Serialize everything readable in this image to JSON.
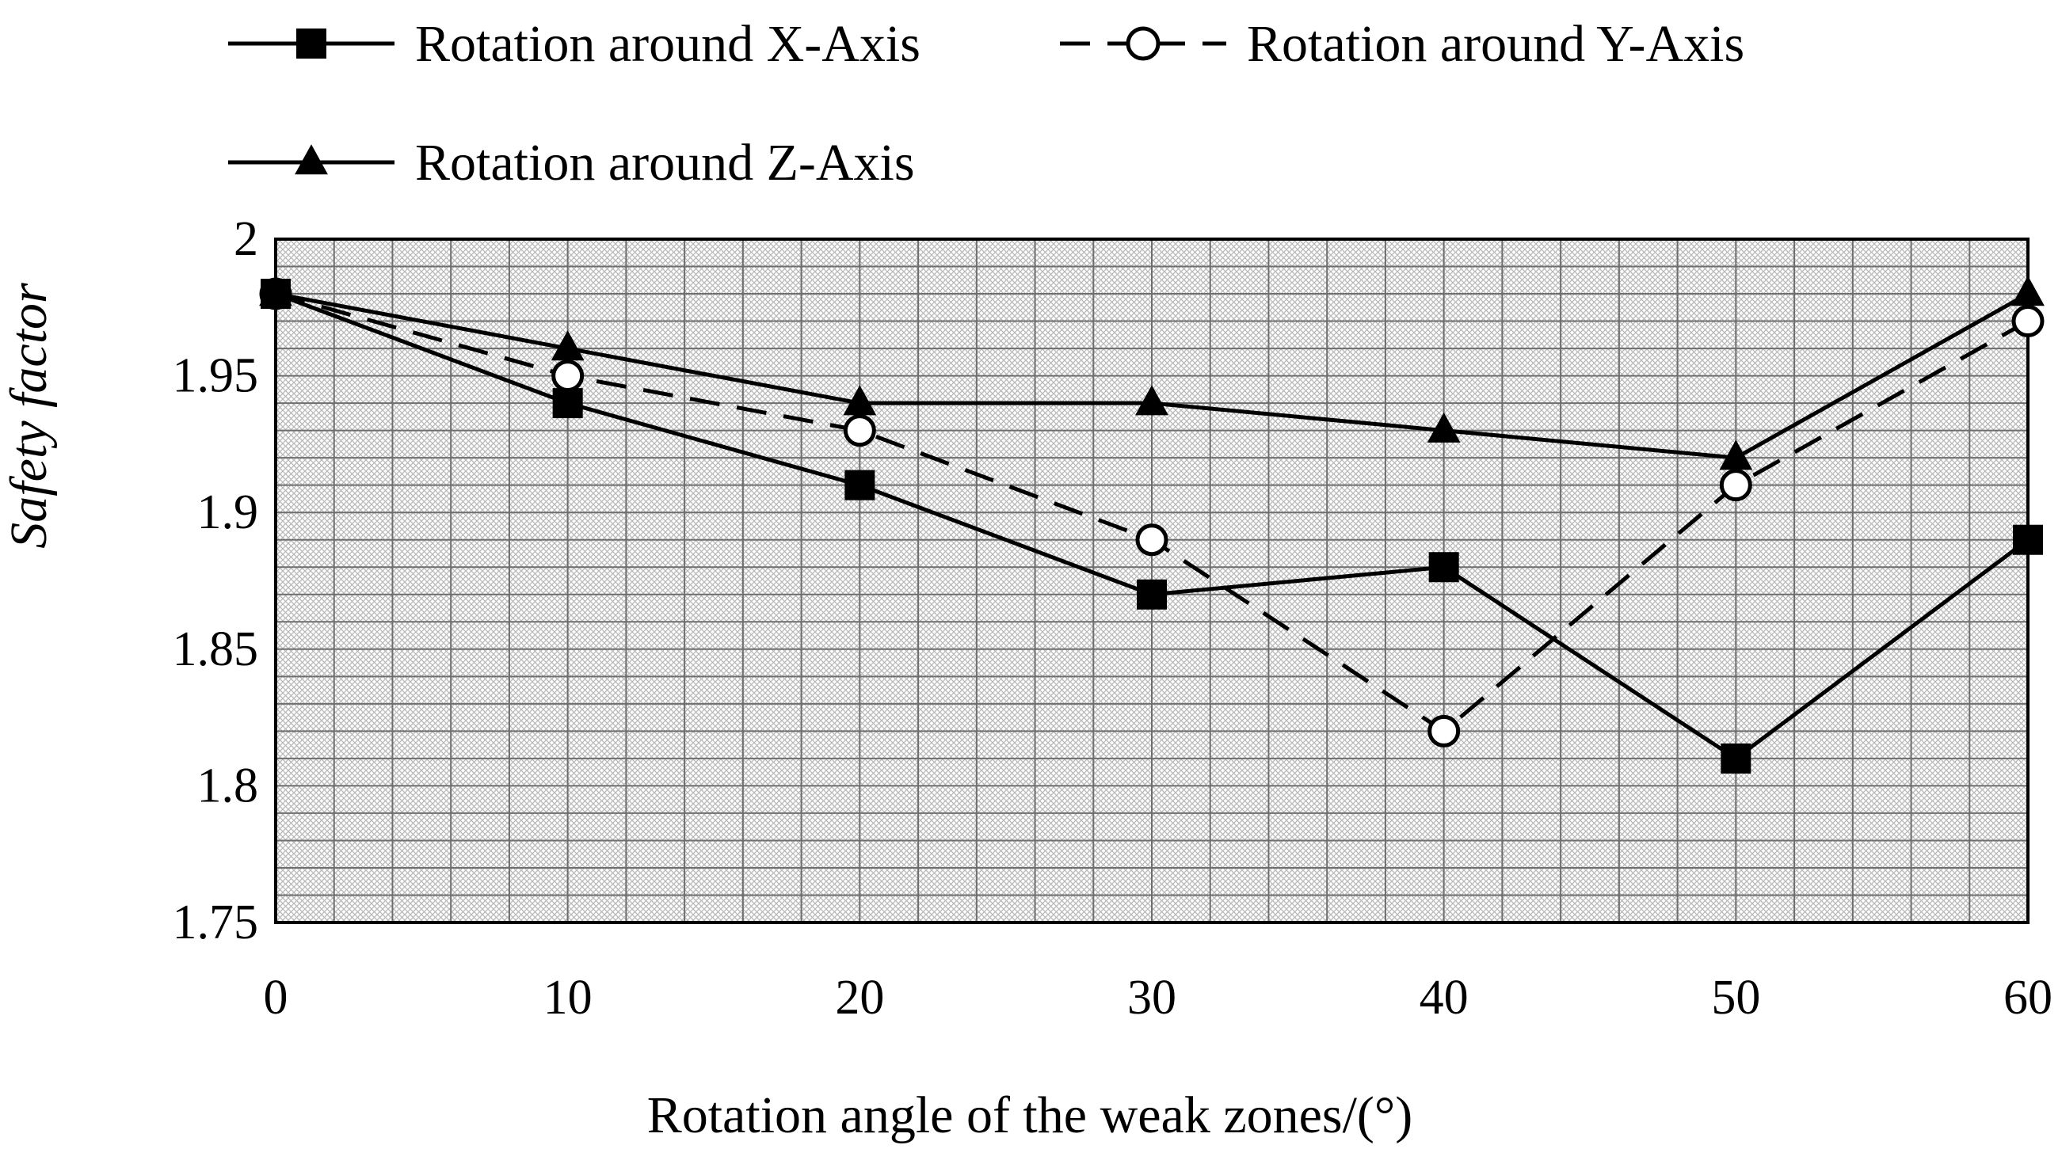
{
  "chart_data": {
    "type": "line",
    "title": "",
    "xlabel": "Rotation angle of the weak zones/(°)",
    "ylabel": "Safety factor",
    "x": [
      0,
      10,
      20,
      30,
      40,
      50,
      60
    ],
    "xlim": [
      0,
      60
    ],
    "ylim": [
      1.75,
      2.0
    ],
    "xticks": [
      "0",
      "10",
      "20",
      "30",
      "40",
      "50",
      "60"
    ],
    "yticks": [
      "1.75",
      "1.8",
      "1.85",
      "1.9",
      "1.95",
      "2"
    ],
    "ytick_values": [
      1.75,
      1.8,
      1.85,
      1.9,
      1.95,
      2.0
    ],
    "grid": true,
    "legend_position": "top",
    "series": [
      {
        "name": "Rotation around X-Axis",
        "marker": "square-filled",
        "line": "solid",
        "values": [
          1.98,
          1.94,
          1.91,
          1.87,
          1.88,
          1.81,
          1.89
        ]
      },
      {
        "name": "Rotation around Y-Axis",
        "marker": "circle-open",
        "line": "dashed",
        "values": [
          1.98,
          1.95,
          1.93,
          1.89,
          1.82,
          1.91,
          1.97
        ]
      },
      {
        "name": "Rotation around Z-Axis",
        "marker": "triangle-filled",
        "line": "solid",
        "values": [
          1.98,
          1.96,
          1.94,
          1.94,
          1.93,
          1.92,
          1.98
        ]
      }
    ]
  }
}
